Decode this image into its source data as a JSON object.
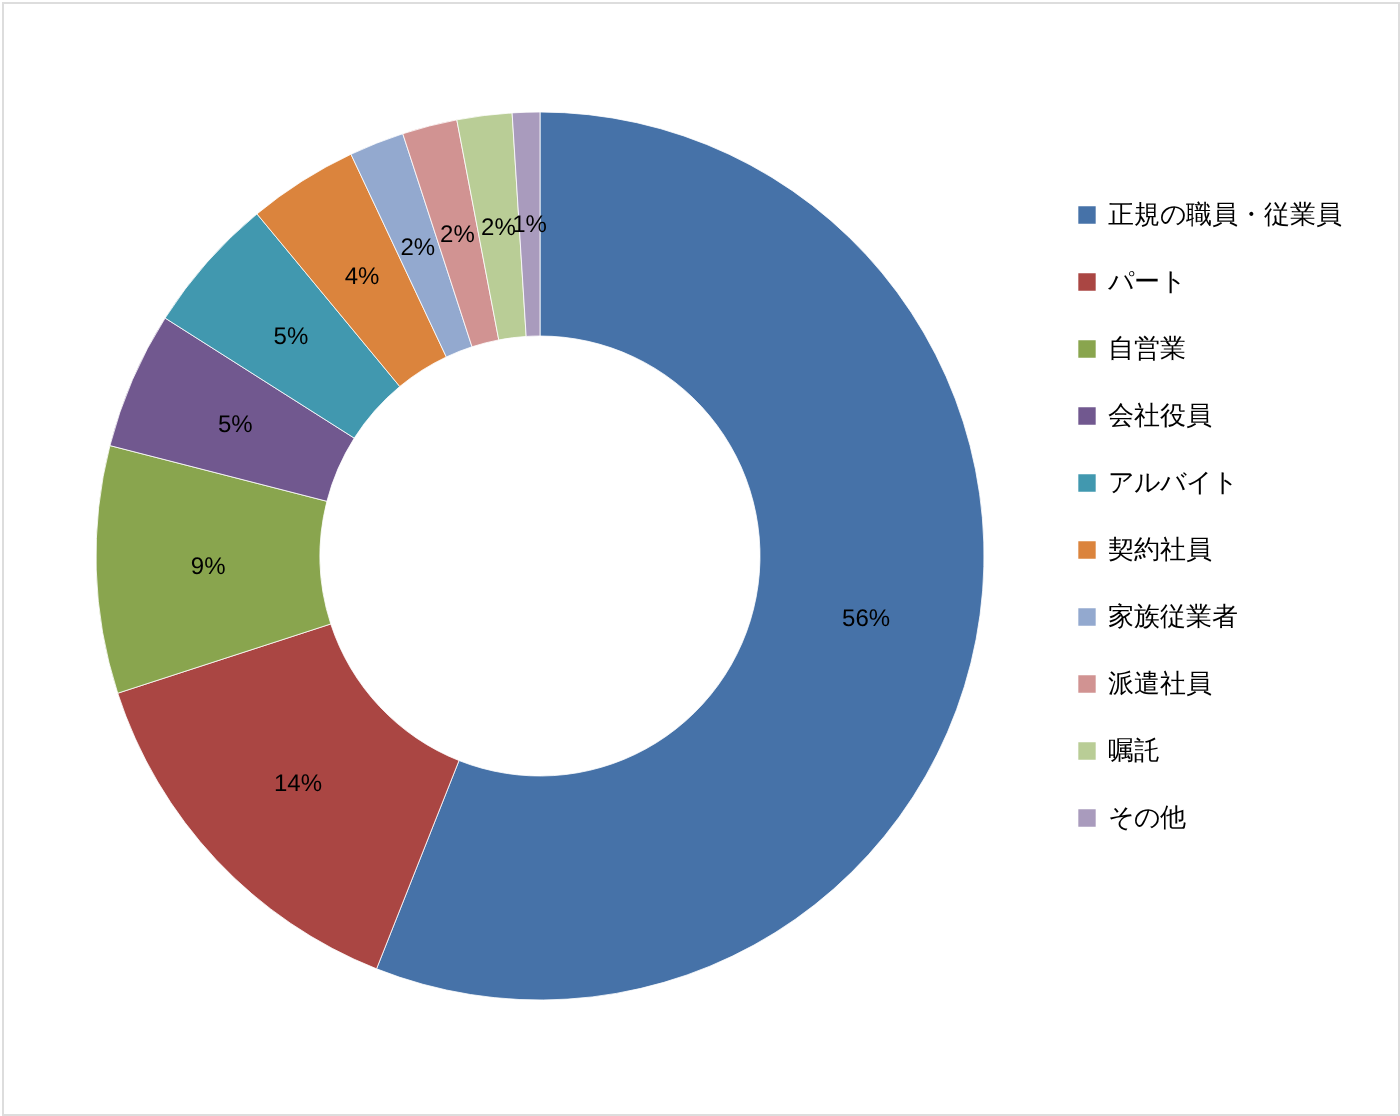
{
  "chart_data": {
    "type": "donut",
    "categories": [
      "正規の職員・従業員",
      "パート",
      "自営業",
      "会社役員",
      "アルバイト",
      "契約社員",
      "家族従業者",
      "派遣社員",
      "嘱託",
      "その他"
    ],
    "values": [
      56,
      14,
      9,
      5,
      5,
      4,
      2,
      2,
      2,
      1
    ],
    "colors": [
      "#4672a8",
      "#aa4643",
      "#89a54e",
      "#71588f",
      "#4198af",
      "#db843d",
      "#93a9cf",
      "#d19392",
      "#b9cd96",
      "#a99bbd"
    ],
    "value_labels": [
      "56%",
      "14%",
      "9%",
      "5%",
      "5%",
      "4%",
      "2%",
      "2%",
      "2%",
      "1%"
    ],
    "legend": "right"
  }
}
